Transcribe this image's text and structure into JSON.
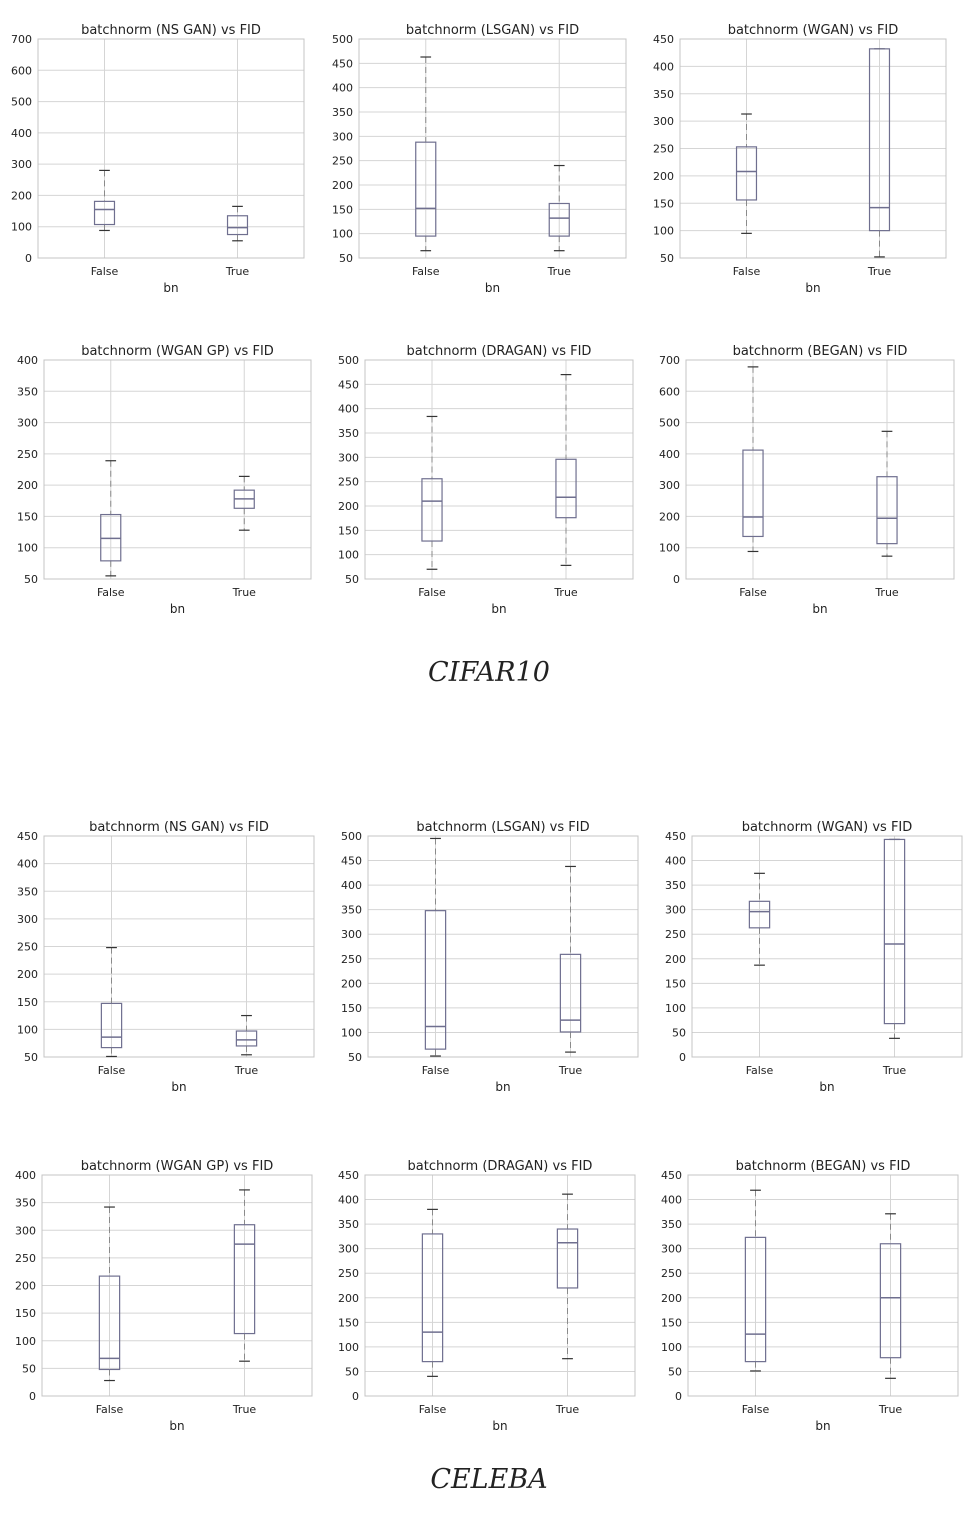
{
  "sections": [
    {
      "label": "CIFAR10"
    },
    {
      "label": "CELEBA"
    }
  ],
  "colors": {
    "box": "#6f6f8f",
    "whisker": "#8a8a8a",
    "grid": "#d5d5d5",
    "frame": "#c4c4c4"
  },
  "chart_data": [
    {
      "type": "box",
      "title": "batchnorm (NS GAN) vs FID",
      "xlabel": "bn",
      "categories": [
        "False",
        "True"
      ],
      "ylim": [
        0,
        700
      ],
      "yticks": [
        0,
        100,
        200,
        300,
        400,
        500,
        600,
        700
      ],
      "grid": true,
      "boxes": [
        {
          "min": 88,
          "q1": 107,
          "median": 155,
          "q3": 181,
          "max": 280
        },
        {
          "min": 55,
          "q1": 75,
          "median": 97,
          "q3": 135,
          "max": 165
        }
      ]
    },
    {
      "type": "box",
      "title": "batchnorm (LSGAN) vs FID",
      "xlabel": "bn",
      "categories": [
        "False",
        "True"
      ],
      "ylim": [
        50,
        500
      ],
      "yticks": [
        50,
        100,
        150,
        200,
        250,
        300,
        350,
        400,
        450,
        500
      ],
      "grid": true,
      "boxes": [
        {
          "min": 65,
          "q1": 95,
          "median": 152,
          "q3": 288,
          "max": 463
        },
        {
          "min": 65,
          "q1": 95,
          "median": 132,
          "q3": 162,
          "max": 240
        }
      ]
    },
    {
      "type": "box",
      "title": "batchnorm (WGAN) vs FID",
      "xlabel": "bn",
      "categories": [
        "False",
        "True"
      ],
      "ylim": [
        50,
        450
      ],
      "yticks": [
        50,
        100,
        150,
        200,
        250,
        300,
        350,
        400,
        450
      ],
      "grid": true,
      "boxes": [
        {
          "min": 95,
          "q1": 156,
          "median": 208,
          "q3": 253,
          "max": 313
        },
        {
          "min": 52,
          "q1": 100,
          "median": 142,
          "q3": 432,
          "max": 432
        }
      ]
    },
    {
      "type": "box",
      "title": "batchnorm (WGAN GP) vs FID",
      "xlabel": "bn",
      "categories": [
        "False",
        "True"
      ],
      "ylim": [
        50,
        400
      ],
      "yticks": [
        50,
        100,
        150,
        200,
        250,
        300,
        350,
        400
      ],
      "grid": true,
      "boxes": [
        {
          "min": 55,
          "q1": 79,
          "median": 115,
          "q3": 153,
          "max": 239
        },
        {
          "min": 128,
          "q1": 163,
          "median": 178,
          "q3": 192,
          "max": 214
        }
      ]
    },
    {
      "type": "box",
      "title": "batchnorm (DRAGAN) vs FID",
      "xlabel": "bn",
      "categories": [
        "False",
        "True"
      ],
      "ylim": [
        50,
        500
      ],
      "yticks": [
        50,
        100,
        150,
        200,
        250,
        300,
        350,
        400,
        450,
        500
      ],
      "grid": true,
      "boxes": [
        {
          "min": 70,
          "q1": 128,
          "median": 210,
          "q3": 256,
          "max": 384
        },
        {
          "min": 78,
          "q1": 176,
          "median": 218,
          "q3": 296,
          "max": 470
        }
      ]
    },
    {
      "type": "box",
      "title": "batchnorm (BEGAN) vs FID",
      "xlabel": "bn",
      "categories": [
        "False",
        "True"
      ],
      "ylim": [
        0,
        700
      ],
      "yticks": [
        0,
        100,
        200,
        300,
        400,
        500,
        600,
        700
      ],
      "grid": true,
      "boxes": [
        {
          "min": 88,
          "q1": 136,
          "median": 198,
          "q3": 412,
          "max": 678
        },
        {
          "min": 73,
          "q1": 113,
          "median": 194,
          "q3": 327,
          "max": 472
        }
      ]
    },
    {
      "type": "box",
      "title": "batchnorm (NS GAN) vs FID",
      "xlabel": "bn",
      "categories": [
        "False",
        "True"
      ],
      "ylim": [
        50,
        450
      ],
      "yticks": [
        50,
        100,
        150,
        200,
        250,
        300,
        350,
        400,
        450
      ],
      "grid": true,
      "boxes": [
        {
          "min": 51,
          "q1": 67,
          "median": 86,
          "q3": 147,
          "max": 248
        },
        {
          "min": 54,
          "q1": 70,
          "median": 81,
          "q3": 97,
          "max": 125
        }
      ]
    },
    {
      "type": "box",
      "title": "batchnorm (LSGAN) vs FID",
      "xlabel": "bn",
      "categories": [
        "False",
        "True"
      ],
      "ylim": [
        50,
        500
      ],
      "yticks": [
        50,
        100,
        150,
        200,
        250,
        300,
        350,
        400,
        450,
        500
      ],
      "grid": true,
      "boxes": [
        {
          "min": 52,
          "q1": 66,
          "median": 112,
          "q3": 348,
          "max": 495
        },
        {
          "min": 60,
          "q1": 101,
          "median": 125,
          "q3": 259,
          "max": 438
        }
      ]
    },
    {
      "type": "box",
      "title": "batchnorm (WGAN) vs FID",
      "xlabel": "bn",
      "categories": [
        "False",
        "True"
      ],
      "ylim": [
        0,
        450
      ],
      "yticks": [
        0,
        50,
        100,
        150,
        200,
        250,
        300,
        350,
        400,
        450
      ],
      "grid": true,
      "boxes": [
        {
          "min": 187,
          "q1": 263,
          "median": 296,
          "q3": 317,
          "max": 374
        },
        {
          "min": 38,
          "q1": 68,
          "median": 230,
          "q3": 443,
          "max": 443
        }
      ]
    },
    {
      "type": "box",
      "title": "batchnorm (WGAN GP) vs FID",
      "xlabel": "bn",
      "categories": [
        "False",
        "True"
      ],
      "ylim": [
        0,
        400
      ],
      "yticks": [
        0,
        50,
        100,
        150,
        200,
        250,
        300,
        350,
        400
      ],
      "grid": true,
      "boxes": [
        {
          "min": 28,
          "q1": 48,
          "median": 68,
          "q3": 217,
          "max": 342
        },
        {
          "min": 63,
          "q1": 113,
          "median": 275,
          "q3": 310,
          "max": 373
        }
      ]
    },
    {
      "type": "box",
      "title": "batchnorm (DRAGAN) vs FID",
      "xlabel": "bn",
      "categories": [
        "False",
        "True"
      ],
      "ylim": [
        0,
        450
      ],
      "yticks": [
        0,
        50,
        100,
        150,
        200,
        250,
        300,
        350,
        400,
        450
      ],
      "grid": true,
      "boxes": [
        {
          "min": 40,
          "q1": 70,
          "median": 130,
          "q3": 330,
          "max": 380
        },
        {
          "min": 76,
          "q1": 220,
          "median": 312,
          "q3": 340,
          "max": 411
        }
      ]
    },
    {
      "type": "box",
      "title": "batchnorm (BEGAN) vs FID",
      "xlabel": "bn",
      "categories": [
        "False",
        "True"
      ],
      "ylim": [
        0,
        450
      ],
      "yticks": [
        0,
        50,
        100,
        150,
        200,
        250,
        300,
        350,
        400,
        450
      ],
      "grid": true,
      "boxes": [
        {
          "min": 51,
          "q1": 70,
          "median": 126,
          "q3": 323,
          "max": 419
        },
        {
          "min": 36,
          "q1": 78,
          "median": 200,
          "q3": 310,
          "max": 371
        }
      ]
    }
  ]
}
